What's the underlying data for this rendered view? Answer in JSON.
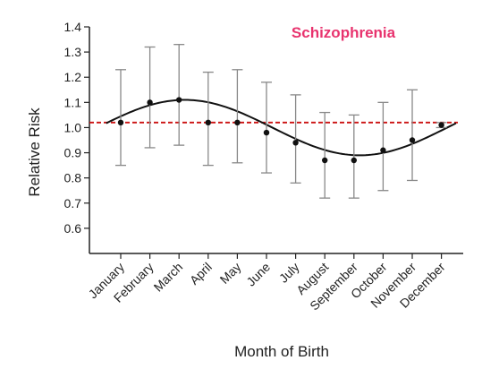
{
  "chart_data": {
    "type": "scatter",
    "title": "Schizophrenia",
    "title_color": "#e8336e",
    "xlabel": "Month of Birth",
    "ylabel": "Relative Risk",
    "ylim": [
      0.5,
      1.4
    ],
    "yticks": [
      "0.6",
      "0.7",
      "0.8",
      "0.9",
      "1.0",
      "1.1",
      "1.2",
      "1.3",
      "1.4"
    ],
    "categories": [
      "January",
      "February",
      "March",
      "April",
      "May",
      "June",
      "July",
      "August",
      "September",
      "October",
      "November",
      "December"
    ],
    "series": [
      {
        "values": [
          1.02,
          1.1,
          1.11,
          1.02,
          1.02,
          0.98,
          0.94,
          0.87,
          0.87,
          0.91,
          0.95,
          1.01
        ],
        "ci_upper": [
          1.23,
          1.32,
          1.33,
          1.22,
          1.23,
          1.18,
          1.13,
          1.06,
          1.05,
          1.1,
          1.15,
          1.02
        ],
        "ci_lower": [
          0.85,
          0.92,
          0.93,
          0.85,
          0.86,
          0.82,
          0.78,
          0.72,
          0.72,
          0.75,
          0.79,
          1.0
        ],
        "point_color": "#111111",
        "errorbar_color": "#888888"
      }
    ],
    "fit_curve": {
      "type": "sinusoidal",
      "mean": 1.0,
      "amplitude": 0.11,
      "peak_month_index": 2.2,
      "color": "#111111"
    },
    "reference_line": {
      "y": 1.02,
      "style": "dashed",
      "color": "#cc1111"
    },
    "grid": false,
    "legend": "none"
  }
}
